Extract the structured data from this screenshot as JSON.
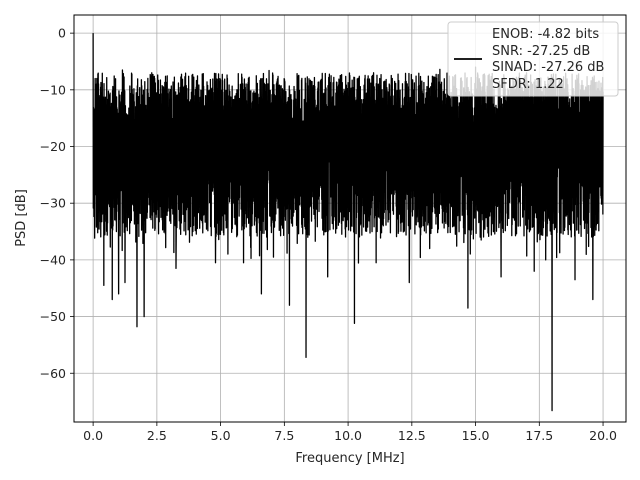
{
  "chart_data": {
    "type": "line",
    "title": "",
    "xlabel": "Frequency [MHz]",
    "ylabel": "PSD [dB]",
    "xlim": [
      -0.75,
      20.9
    ],
    "ylim": [
      -68.6,
      3.2
    ],
    "xticks": [
      0.0,
      2.5,
      5.0,
      7.5,
      10.0,
      12.5,
      15.0,
      17.5,
      20.0
    ],
    "xtick_labels": [
      "0.0",
      "2.5",
      "5.0",
      "7.5",
      "10.0",
      "12.5",
      "15.0",
      "17.5",
      "20.0"
    ],
    "yticks": [
      0,
      -10,
      -20,
      -30,
      -40,
      -50,
      -60
    ],
    "ytick_labels": [
      "0",
      "−10",
      "−20",
      "−30",
      "−40",
      "−50",
      "−60"
    ],
    "grid": true,
    "legend_position": "top-right",
    "legend_lines": [
      "ENOB: -4.82 bits",
      "SNR: -27.25 dB",
      "SINAD: -27.26 dB",
      "SFDR: 1.22"
    ],
    "series": [
      {
        "color": "#000000",
        "x_range": [
          0.0,
          20.0
        ],
        "envelope_max_db": -7.0,
        "envelope_min_db": -36.0,
        "peaks": [
          {
            "x": 0.0,
            "y": 0.0
          },
          {
            "x": 0.08,
            "y": -8.0
          },
          {
            "x": 1.15,
            "y": -6.5
          },
          {
            "x": 2.3,
            "y": -7.0
          },
          {
            "x": 6.9,
            "y": -6.6
          },
          {
            "x": 11.0,
            "y": -7.0
          },
          {
            "x": 13.6,
            "y": -6.4
          },
          {
            "x": 15.0,
            "y": -6.0
          },
          {
            "x": 17.0,
            "y": -7.0
          }
        ],
        "dips": [
          {
            "x": 0.08,
            "y": -41.0
          },
          {
            "x": 0.42,
            "y": -44.5
          },
          {
            "x": 0.75,
            "y": -47.0
          },
          {
            "x": 1.0,
            "y": -46.0
          },
          {
            "x": 1.25,
            "y": -44.0
          },
          {
            "x": 1.72,
            "y": -51.8
          },
          {
            "x": 2.0,
            "y": -50.0
          },
          {
            "x": 2.3,
            "y": -41.0
          },
          {
            "x": 3.25,
            "y": -41.5
          },
          {
            "x": 4.8,
            "y": -40.5
          },
          {
            "x": 5.9,
            "y": -40.5
          },
          {
            "x": 6.6,
            "y": -46.0
          },
          {
            "x": 7.7,
            "y": -48.0
          },
          {
            "x": 8.35,
            "y": -57.2
          },
          {
            "x": 9.2,
            "y": -43.0
          },
          {
            "x": 10.25,
            "y": -51.2
          },
          {
            "x": 11.1,
            "y": -40.5
          },
          {
            "x": 12.4,
            "y": -44.0
          },
          {
            "x": 13.2,
            "y": -38.0
          },
          {
            "x": 14.7,
            "y": -48.5
          },
          {
            "x": 16.0,
            "y": -43.0
          },
          {
            "x": 17.3,
            "y": -42.0
          },
          {
            "x": 17.75,
            "y": -40.0
          },
          {
            "x": 18.0,
            "y": -66.6
          },
          {
            "x": 18.9,
            "y": -43.5
          },
          {
            "x": 19.6,
            "y": -47.0
          }
        ]
      }
    ]
  }
}
